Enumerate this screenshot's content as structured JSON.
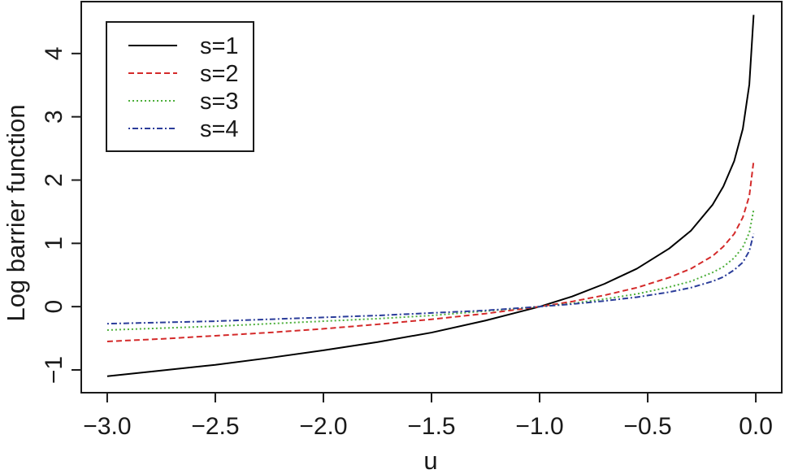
{
  "chart_data": {
    "type": "line",
    "xlabel": "u",
    "ylabel": "Log barrier function",
    "xlim": [
      -3.12,
      0.12
    ],
    "ylim": [
      -1.36,
      4.82
    ],
    "x_ticks": [
      -3.0,
      -2.5,
      -2.0,
      -1.5,
      -1.0,
      -0.5,
      0.0
    ],
    "x_tick_labels": [
      "−3.0",
      "−2.5",
      "−2.0",
      "−1.5",
      "−1.0",
      "−0.5",
      "0.0"
    ],
    "y_ticks": [
      -1,
      0,
      1,
      2,
      3,
      4
    ],
    "y_tick_labels": [
      "−1",
      "0",
      "1",
      "2",
      "3",
      "4"
    ],
    "grid": false,
    "legend_position": "top-left",
    "series": [
      {
        "name": "s=1",
        "color": "#000000",
        "dash": "solid",
        "x": [
          -3.0,
          -2.75,
          -2.5,
          -2.25,
          -2.0,
          -1.75,
          -1.5,
          -1.25,
          -1.0,
          -0.85,
          -0.7,
          -0.55,
          -0.4,
          -0.3,
          -0.2,
          -0.15,
          -0.1,
          -0.06,
          -0.03,
          -0.01
        ],
        "y": [
          -1.1,
          -1.01,
          -0.92,
          -0.81,
          -0.69,
          -0.56,
          -0.41,
          -0.22,
          0.0,
          0.16,
          0.36,
          0.6,
          0.92,
          1.2,
          1.61,
          1.9,
          2.3,
          2.81,
          3.51,
          4.61
        ]
      },
      {
        "name": "s=2",
        "color": "#d42a2a",
        "dash": "dashed",
        "x": [
          -3.0,
          -2.75,
          -2.5,
          -2.25,
          -2.0,
          -1.75,
          -1.5,
          -1.25,
          -1.0,
          -0.85,
          -0.7,
          -0.55,
          -0.4,
          -0.3,
          -0.2,
          -0.15,
          -0.1,
          -0.06,
          -0.03,
          -0.01
        ],
        "y": [
          -0.55,
          -0.51,
          -0.46,
          -0.41,
          -0.35,
          -0.28,
          -0.2,
          -0.11,
          0.0,
          0.08,
          0.18,
          0.3,
          0.46,
          0.6,
          0.8,
          0.95,
          1.15,
          1.41,
          1.75,
          2.3
        ]
      },
      {
        "name": "s=3",
        "color": "#4caf3a",
        "dash": "dotted",
        "x": [
          -3.0,
          -2.75,
          -2.5,
          -2.25,
          -2.0,
          -1.75,
          -1.5,
          -1.25,
          -1.0,
          -0.85,
          -0.7,
          -0.55,
          -0.4,
          -0.3,
          -0.2,
          -0.15,
          -0.1,
          -0.06,
          -0.03,
          -0.01
        ],
        "y": [
          -0.37,
          -0.34,
          -0.31,
          -0.27,
          -0.23,
          -0.19,
          -0.14,
          -0.07,
          0.0,
          0.05,
          0.12,
          0.2,
          0.31,
          0.4,
          0.54,
          0.63,
          0.77,
          0.94,
          1.17,
          1.53
        ]
      },
      {
        "name": "s=4",
        "color": "#2b3d9a",
        "dash": "dotdash",
        "x": [
          -3.0,
          -2.75,
          -2.5,
          -2.25,
          -2.0,
          -1.75,
          -1.5,
          -1.25,
          -1.0,
          -0.85,
          -0.7,
          -0.55,
          -0.4,
          -0.3,
          -0.2,
          -0.15,
          -0.1,
          -0.06,
          -0.03,
          -0.01
        ],
        "y": [
          -0.27,
          -0.25,
          -0.23,
          -0.2,
          -0.17,
          -0.14,
          -0.1,
          -0.06,
          0.0,
          0.04,
          0.09,
          0.15,
          0.23,
          0.3,
          0.4,
          0.47,
          0.58,
          0.7,
          0.88,
          1.15
        ]
      }
    ]
  }
}
